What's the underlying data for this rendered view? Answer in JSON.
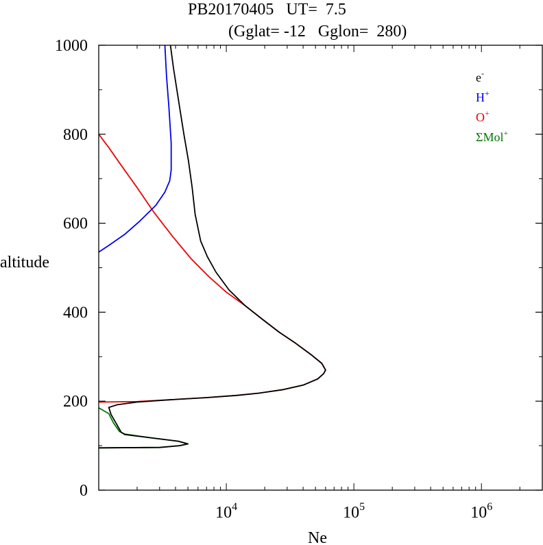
{
  "title": {
    "line1": "PB20170405   UT=  7.5",
    "line2": "(Gglat= -12   Gglon=  280)"
  },
  "chart_data": {
    "type": "line",
    "xlabel": "Ne",
    "ylabel": "altitude",
    "xscale": "log",
    "xlim": [
      1000,
      3000000
    ],
    "ylim": [
      0,
      1000
    ],
    "x_ticks": [
      {
        "value": 10000,
        "base": "10",
        "exp": "4"
      },
      {
        "value": 100000,
        "base": "10",
        "exp": "5"
      },
      {
        "value": 1000000,
        "base": "10",
        "exp": "6"
      }
    ],
    "y_ticks": [
      0,
      200,
      400,
      600,
      800,
      1000
    ],
    "legend_position": "top-right",
    "series": [
      {
        "name": "e-",
        "label_base": "e",
        "label_sup": "-",
        "color": "#000000",
        "points": [
          [
            1000,
            95
          ],
          [
            3000,
            96
          ],
          [
            4300,
            100
          ],
          [
            5000,
            104
          ],
          [
            4200,
            110
          ],
          [
            2500,
            118
          ],
          [
            1600,
            125
          ],
          [
            1500,
            130
          ],
          [
            1370,
            150
          ],
          [
            1250,
            170
          ],
          [
            1200,
            186
          ],
          [
            1400,
            192
          ],
          [
            2000,
            198
          ],
          [
            3500,
            203
          ],
          [
            7000,
            208
          ],
          [
            12000,
            213
          ],
          [
            18000,
            218
          ],
          [
            28000,
            226
          ],
          [
            40000,
            236
          ],
          [
            52000,
            250
          ],
          [
            58000,
            262
          ],
          [
            60000,
            270
          ],
          [
            56000,
            285
          ],
          [
            46000,
            305
          ],
          [
            35000,
            330
          ],
          [
            26000,
            355
          ],
          [
            19000,
            385
          ],
          [
            14000,
            415
          ],
          [
            10500,
            450
          ],
          [
            8300,
            490
          ],
          [
            7100,
            525
          ],
          [
            6300,
            560
          ],
          [
            5700,
            620
          ],
          [
            5400,
            680
          ],
          [
            5050,
            740
          ],
          [
            4650,
            800
          ],
          [
            4200,
            880
          ],
          [
            3850,
            950
          ],
          [
            3650,
            1000
          ]
        ]
      },
      {
        "name": "H+",
        "label_base": "H",
        "label_sup": "+",
        "color": "#0000ee",
        "points": [
          [
            1000,
            535
          ],
          [
            1200,
            550
          ],
          [
            1600,
            575
          ],
          [
            2100,
            605
          ],
          [
            2800,
            640
          ],
          [
            3300,
            670
          ],
          [
            3600,
            695
          ],
          [
            3700,
            720
          ],
          [
            3700,
            780
          ],
          [
            3550,
            860
          ],
          [
            3400,
            930
          ],
          [
            3300,
            1000
          ]
        ]
      },
      {
        "name": "O+",
        "label_base": "O",
        "label_sup": "+",
        "color": "#ee0000",
        "points": [
          [
            1000,
            198
          ],
          [
            2000,
            199
          ],
          [
            3500,
            203
          ],
          [
            7000,
            208
          ],
          [
            12000,
            213
          ],
          [
            18000,
            218
          ],
          [
            28000,
            226
          ],
          [
            40000,
            236
          ],
          [
            52000,
            250
          ],
          [
            58000,
            262
          ],
          [
            60000,
            270
          ],
          [
            56000,
            285
          ],
          [
            46000,
            305
          ],
          [
            35000,
            330
          ],
          [
            26000,
            355
          ],
          [
            19000,
            385
          ],
          [
            14000,
            415
          ],
          [
            10000,
            445
          ],
          [
            7300,
            480
          ],
          [
            5300,
            520
          ],
          [
            3800,
            570
          ],
          [
            2700,
            625
          ],
          [
            2000,
            680
          ],
          [
            1500,
            730
          ],
          [
            1200,
            770
          ],
          [
            1000,
            800
          ]
        ]
      },
      {
        "name": "ΣMol+",
        "label_base": "ΣMol",
        "label_sup": "+",
        "color": "#007700",
        "points": [
          [
            1000,
            185
          ],
          [
            1200,
            172
          ],
          [
            1300,
            152
          ],
          [
            1450,
            132
          ],
          [
            1600,
            126
          ],
          [
            2500,
            118
          ],
          [
            4200,
            110
          ],
          [
            5000,
            104
          ],
          [
            4300,
            100
          ],
          [
            3000,
            96
          ],
          [
            1000,
            95
          ]
        ]
      }
    ]
  }
}
